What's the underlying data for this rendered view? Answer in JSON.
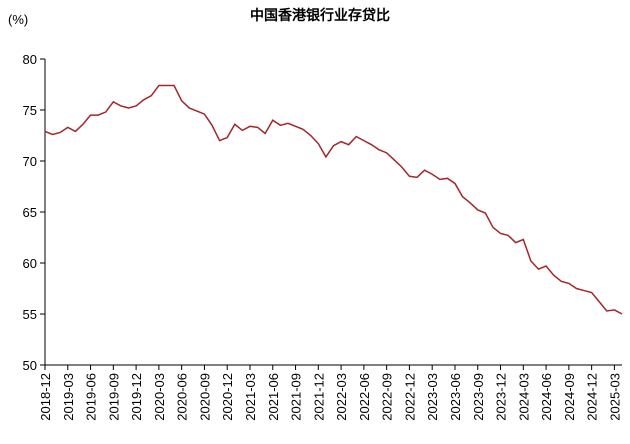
{
  "chart_data": {
    "type": "line",
    "title": "中国香港银行业存贷比",
    "y_label": "(%)",
    "categories": [
      "2018-12",
      null,
      null,
      "2019-03",
      null,
      null,
      "2019-06",
      null,
      null,
      "2019-09",
      null,
      null,
      "2019-12",
      null,
      null,
      "2020-03",
      null,
      null,
      "2020-06",
      null,
      null,
      "2020-09",
      null,
      null,
      "2020-12",
      null,
      null,
      "2021-03",
      null,
      null,
      "2021-06",
      null,
      null,
      "2021-09",
      null,
      null,
      "2021-12",
      null,
      null,
      "2022-03",
      null,
      null,
      "2022-06",
      null,
      null,
      "2022-09",
      null,
      null,
      "2022-12",
      null,
      null,
      "2023-03",
      null,
      null,
      "2023-06",
      null,
      null,
      "2023-09",
      null,
      null,
      "2023-12",
      null,
      null,
      "2024-03",
      null,
      null,
      "2024-06",
      null,
      null,
      "2024-09",
      null,
      null,
      "2024-12",
      null,
      null,
      "2025-03",
      null
    ],
    "series": [
      {
        "name": null,
        "color": "#a3262a",
        "values": [
          72.9,
          72.6,
          72.8,
          73.3,
          72.9,
          73.6,
          74.5,
          74.5,
          74.8,
          75.8,
          75.4,
          75.2,
          75.4,
          76.0,
          76.4,
          77.4,
          77.4,
          77.4,
          75.9,
          75.2,
          74.9,
          74.6,
          73.5,
          72.0,
          72.3,
          73.6,
          73.0,
          73.4,
          73.3,
          72.7,
          74.0,
          73.5,
          73.7,
          73.4,
          73.1,
          72.5,
          71.7,
          70.4,
          71.5,
          71.9,
          71.6,
          72.4,
          72.0,
          71.6,
          71.1,
          70.8,
          70.1,
          69.4,
          68.5,
          68.4,
          69.1,
          68.7,
          68.2,
          68.3,
          67.8,
          66.5,
          65.9,
          65.2,
          64.9,
          63.5,
          62.9,
          62.7,
          62.0,
          62.3,
          60.2,
          59.4,
          59.7,
          58.8,
          58.2,
          58.0,
          57.5,
          57.3,
          57.1,
          56.2,
          55.3,
          55.4,
          55.0
        ]
      }
    ],
    "ylim": [
      50,
      80
    ],
    "yticks": [
      50,
      55,
      60,
      65,
      70,
      75,
      80
    ],
    "grid": false
  }
}
